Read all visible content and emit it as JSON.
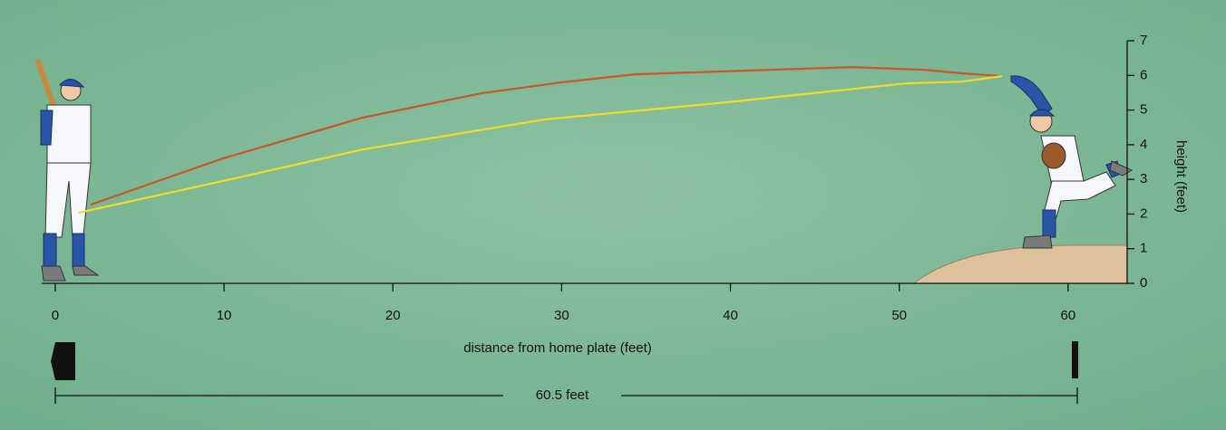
{
  "chart_data": {
    "type": "line",
    "x_label": "distance from home plate (feet)",
    "y_label": "height (feet)",
    "annotation": "60.5 feet",
    "xlim": [
      -0.8,
      63.5
    ],
    "xticks": [
      0,
      10,
      20,
      30,
      40,
      50,
      60
    ],
    "ylim": [
      0,
      7
    ],
    "yticks": [
      0,
      1,
      2,
      3,
      4,
      5,
      6,
      7
    ],
    "series": [
      {
        "color": "#c8572a",
        "x": [
          2.1,
          9.9,
          18.2,
          25.2,
          30,
          34.3,
          47.2,
          51.5,
          53.7,
          56.1
        ],
        "values": [
          2.27,
          3.6,
          4.78,
          5.48,
          5.8,
          6.03,
          6.24,
          6.16,
          6.06,
          5.98
        ]
      },
      {
        "color": "#f2dc2a",
        "x": [
          1.4,
          9.9,
          18.2,
          29,
          39.7,
          50.4,
          53.7,
          56.1
        ],
        "values": [
          2.04,
          2.95,
          3.86,
          4.73,
          5.22,
          5.77,
          5.82,
          5.98
        ]
      }
    ]
  }
}
